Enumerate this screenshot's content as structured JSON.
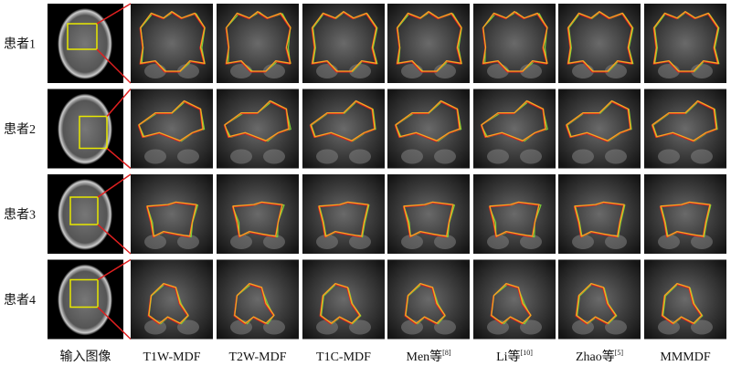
{
  "rows": [
    "患者1",
    "患者2",
    "患者3",
    "患者4"
  ],
  "columns": [
    {
      "text": "输入图像"
    },
    {
      "text": "T1W-MDF"
    },
    {
      "text": "T2W-MDF"
    },
    {
      "text": "T1C-MDF"
    },
    {
      "text": "Men等",
      "ref": "[8]"
    },
    {
      "text": "Li等",
      "ref": "[10]"
    },
    {
      "text": "Zhao等",
      "ref": "[5]"
    },
    {
      "text": "MMMDF"
    }
  ]
}
